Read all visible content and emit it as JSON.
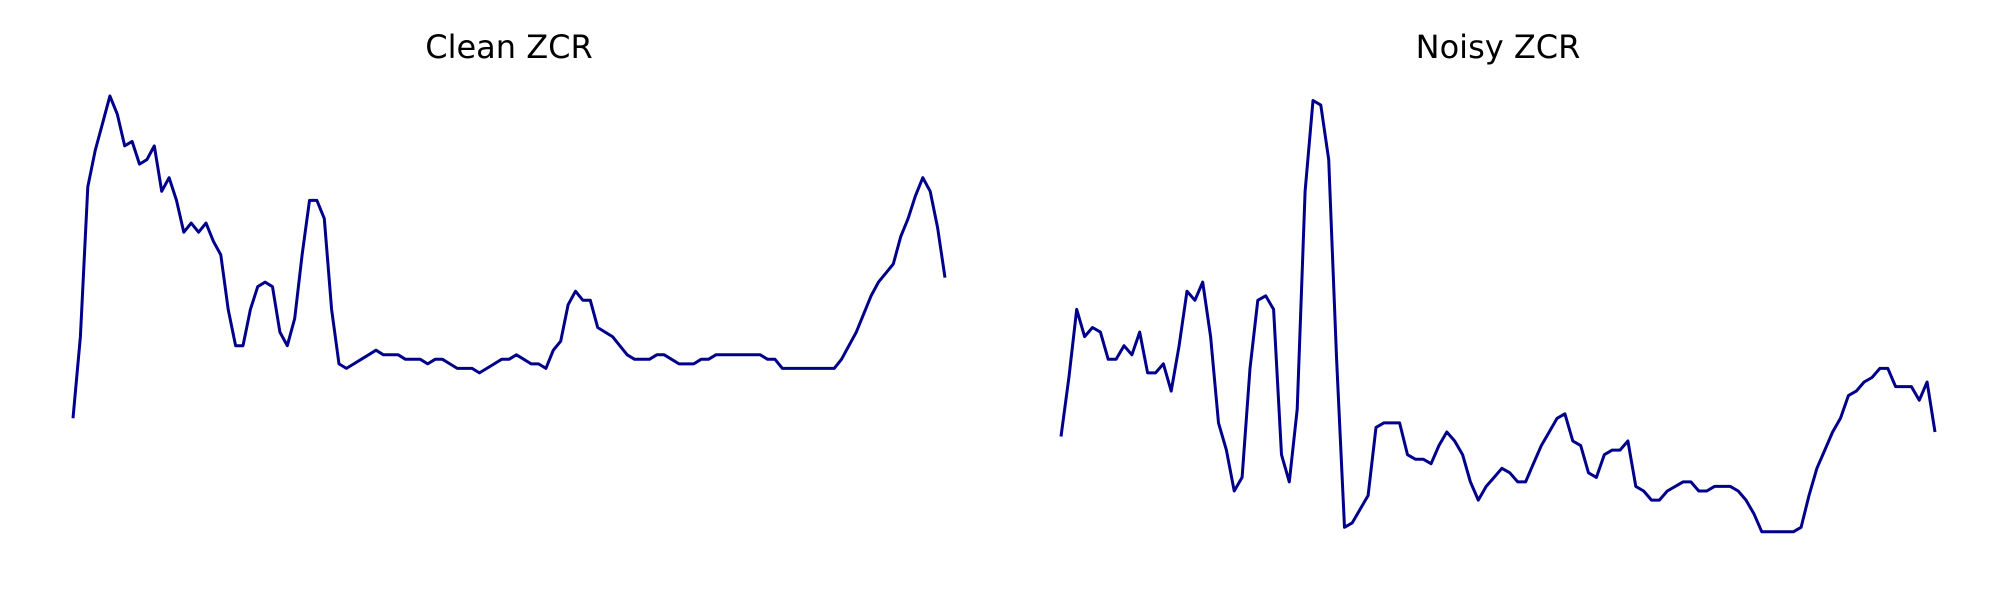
{
  "chart_data": [
    {
      "type": "line",
      "title": "Clean ZCR",
      "xlabel": "",
      "ylabel": "",
      "grid": false,
      "axes_visible": false,
      "ylim": [
        0,
        1
      ],
      "color": "#00008b",
      "values": [
        0.29,
        0.47,
        0.8,
        0.88,
        0.94,
        1.0,
        0.96,
        0.89,
        0.9,
        0.85,
        0.86,
        0.89,
        0.79,
        0.82,
        0.77,
        0.7,
        0.72,
        0.7,
        0.72,
        0.68,
        0.65,
        0.53,
        0.45,
        0.45,
        0.53,
        0.58,
        0.59,
        0.58,
        0.48,
        0.45,
        0.51,
        0.65,
        0.77,
        0.77,
        0.73,
        0.53,
        0.41,
        0.4,
        0.41,
        0.42,
        0.43,
        0.44,
        0.43,
        0.43,
        0.43,
        0.42,
        0.42,
        0.42,
        0.41,
        0.42,
        0.42,
        0.41,
        0.4,
        0.4,
        0.4,
        0.39,
        0.4,
        0.41,
        0.42,
        0.42,
        0.43,
        0.42,
        0.41,
        0.41,
        0.4,
        0.44,
        0.46,
        0.54,
        0.57,
        0.55,
        0.55,
        0.49,
        0.48,
        0.47,
        0.45,
        0.43,
        0.42,
        0.42,
        0.42,
        0.43,
        0.43,
        0.42,
        0.41,
        0.41,
        0.41,
        0.42,
        0.42,
        0.43,
        0.43,
        0.43,
        0.43,
        0.43,
        0.43,
        0.43,
        0.42,
        0.42,
        0.4,
        0.4,
        0.4,
        0.4,
        0.4,
        0.4,
        0.4,
        0.4,
        0.42,
        0.45,
        0.48,
        0.52,
        0.56,
        0.59,
        0.61,
        0.63,
        0.69,
        0.73,
        0.78,
        0.82,
        0.79,
        0.71,
        0.6
      ]
    },
    {
      "type": "line",
      "title": "Noisy ZCR",
      "xlabel": "",
      "ylabel": "",
      "grid": false,
      "axes_visible": false,
      "ylim": [
        0,
        1
      ],
      "color": "#00008b",
      "values": [
        0.25,
        0.38,
        0.53,
        0.47,
        0.49,
        0.48,
        0.42,
        0.42,
        0.45,
        0.43,
        0.48,
        0.39,
        0.39,
        0.41,
        0.35,
        0.45,
        0.57,
        0.55,
        0.59,
        0.47,
        0.28,
        0.22,
        0.13,
        0.16,
        0.4,
        0.55,
        0.56,
        0.53,
        0.21,
        0.15,
        0.31,
        0.79,
        0.99,
        0.98,
        0.86,
        0.42,
        0.05,
        0.06,
        0.09,
        0.12,
        0.27,
        0.28,
        0.28,
        0.28,
        0.21,
        0.2,
        0.2,
        0.19,
        0.23,
        0.26,
        0.24,
        0.21,
        0.15,
        0.11,
        0.14,
        0.16,
        0.18,
        0.17,
        0.15,
        0.15,
        0.19,
        0.23,
        0.26,
        0.29,
        0.3,
        0.24,
        0.23,
        0.17,
        0.16,
        0.21,
        0.22,
        0.22,
        0.24,
        0.14,
        0.13,
        0.11,
        0.11,
        0.13,
        0.14,
        0.15,
        0.15,
        0.13,
        0.13,
        0.14,
        0.14,
        0.14,
        0.13,
        0.11,
        0.08,
        0.04,
        0.04,
        0.04,
        0.04,
        0.04,
        0.05,
        0.12,
        0.18,
        0.22,
        0.26,
        0.29,
        0.34,
        0.35,
        0.37,
        0.38,
        0.4,
        0.4,
        0.36,
        0.36,
        0.36,
        0.33,
        0.37,
        0.26
      ]
    }
  ]
}
